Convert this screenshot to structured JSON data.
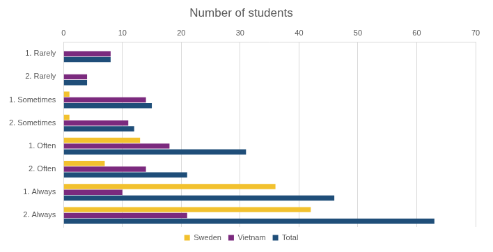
{
  "chart_data": {
    "type": "bar",
    "orientation": "horizontal",
    "title": "Number of students",
    "categories": [
      "1. Rarely",
      "2. Rarely",
      "1. Sometimes",
      "2. Sometimes",
      "1. Often",
      "2. Often",
      "1. Always",
      "2. Always"
    ],
    "series": [
      {
        "name": "Sweden",
        "color": "#f2c12e",
        "values": [
          0,
          0,
          1,
          1,
          13,
          7,
          36,
          42
        ]
      },
      {
        "name": "Vietnam",
        "color": "#7b2a7e",
        "values": [
          8,
          4,
          14,
          11,
          18,
          14,
          10,
          21
        ]
      },
      {
        "name": "Total",
        "color": "#1f4e79",
        "values": [
          8,
          4,
          15,
          12,
          31,
          21,
          46,
          63
        ]
      }
    ],
    "xlim": [
      0,
      70
    ],
    "xticks": [
      0,
      10,
      20,
      30,
      40,
      50,
      60,
      70
    ],
    "grid": true,
    "legend": "bottom"
  }
}
